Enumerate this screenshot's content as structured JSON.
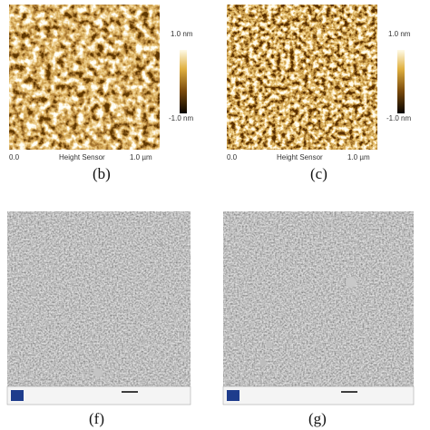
{
  "afm_panels": [
    {
      "label": "(b)",
      "scale_max": "1.0 nm",
      "scale_min": "-1.0 nm",
      "axis_start": "0.0",
      "axis_title": "Height Sensor",
      "axis_end": "1.0 µm"
    },
    {
      "label": "(c)",
      "scale_max": "1.0 nm",
      "scale_min": "-1.0 nm",
      "axis_start": "0.0",
      "axis_title": "Height Sensor",
      "axis_end": "1.0 µm"
    }
  ],
  "sem_panels": [
    {
      "label": "(f)"
    },
    {
      "label": "(g)"
    }
  ]
}
